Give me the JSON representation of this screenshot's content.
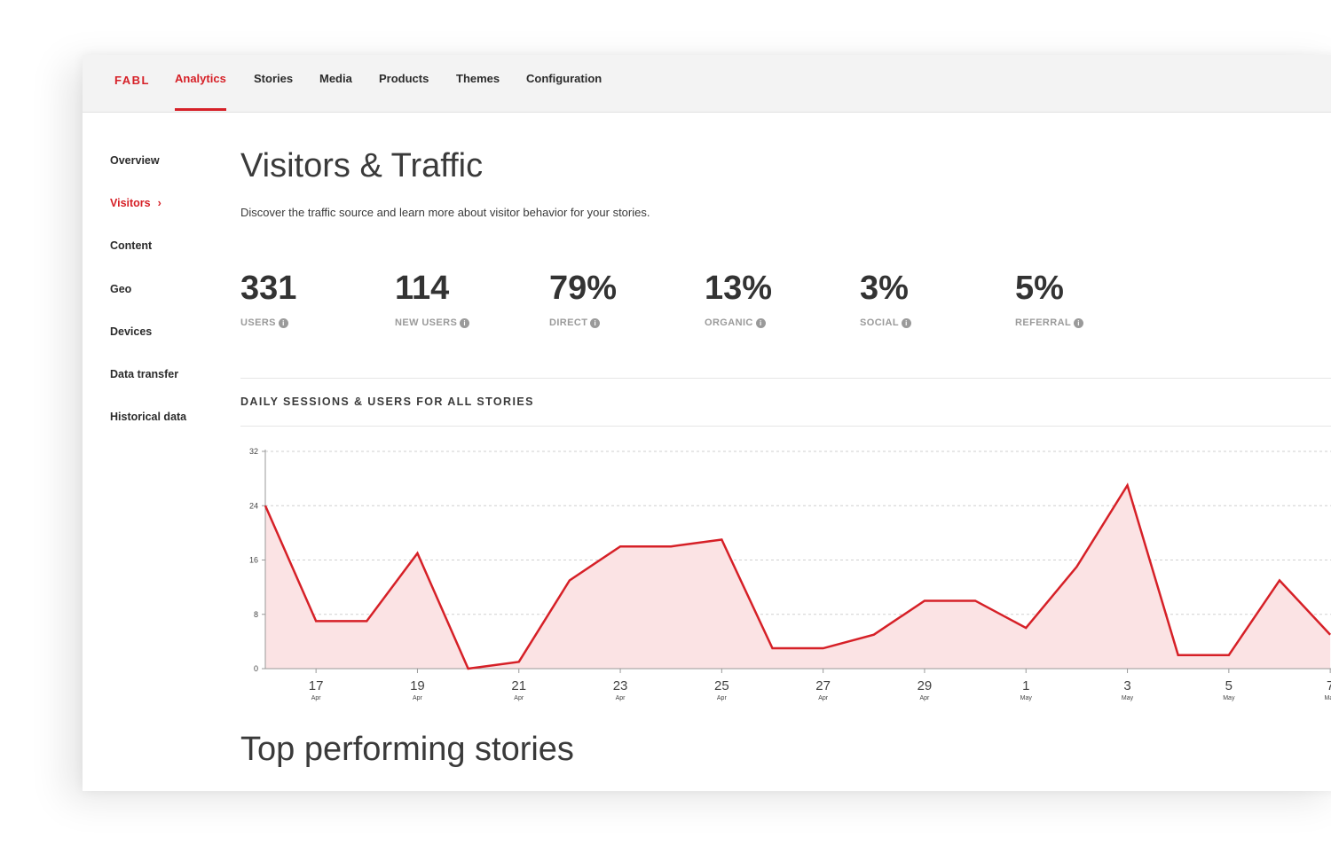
{
  "brand": "FABL",
  "nav": {
    "items": [
      "Analytics",
      "Stories",
      "Media",
      "Products",
      "Themes",
      "Configuration"
    ],
    "active": "Analytics"
  },
  "sidebar": {
    "items": [
      "Overview",
      "Visitors",
      "Content",
      "Geo",
      "Devices",
      "Data transfer",
      "Historical data"
    ],
    "active": "Visitors"
  },
  "page": {
    "title": "Visitors & Traffic",
    "description": "Discover the traffic source and learn more about visitor behavior for your stories."
  },
  "stats": [
    {
      "value": "331",
      "label": "USERS"
    },
    {
      "value": "114",
      "label": "NEW USERS"
    },
    {
      "value": "79%",
      "label": "DIRECT"
    },
    {
      "value": "13%",
      "label": "ORGANIC"
    },
    {
      "value": "3%",
      "label": "SOCIAL"
    },
    {
      "value": "5%",
      "label": "REFERRAL"
    }
  ],
  "section_title": "DAILY SESSIONS & USERS FOR ALL STORIES",
  "bottom_title": "Top performing stories",
  "colors": {
    "accent": "#d62027",
    "fill": "#fbe3e4"
  },
  "chart_data": {
    "type": "area",
    "x": [
      "2024-04-16",
      "2024-04-17",
      "2024-04-18",
      "2024-04-19",
      "2024-04-20",
      "2024-04-21",
      "2024-04-22",
      "2024-04-23",
      "2024-04-24",
      "2024-04-25",
      "2024-04-26",
      "2024-04-27",
      "2024-04-28",
      "2024-04-29",
      "2024-04-30",
      "2024-05-01",
      "2024-05-02",
      "2024-05-03",
      "2024-05-04",
      "2024-05-05",
      "2024-05-06",
      "2024-05-07"
    ],
    "values": [
      24,
      7,
      7,
      17,
      0,
      1,
      13,
      18,
      18,
      19,
      3,
      3,
      5,
      10,
      10,
      6,
      15,
      27,
      2,
      2,
      13,
      5
    ],
    "ylim": [
      0,
      32
    ],
    "yticks": [
      0,
      8,
      16,
      24,
      32
    ],
    "xtick_labels": [
      {
        "day": "17",
        "month": "Apr"
      },
      {
        "day": "19",
        "month": "Apr"
      },
      {
        "day": "21",
        "month": "Apr"
      },
      {
        "day": "23",
        "month": "Apr"
      },
      {
        "day": "25",
        "month": "Apr"
      },
      {
        "day": "27",
        "month": "Apr"
      },
      {
        "day": "29",
        "month": "Apr"
      },
      {
        "day": "1",
        "month": "May"
      },
      {
        "day": "3",
        "month": "May"
      },
      {
        "day": "5",
        "month": "May"
      },
      {
        "day": "7",
        "month": "May"
      }
    ],
    "grid": true
  }
}
